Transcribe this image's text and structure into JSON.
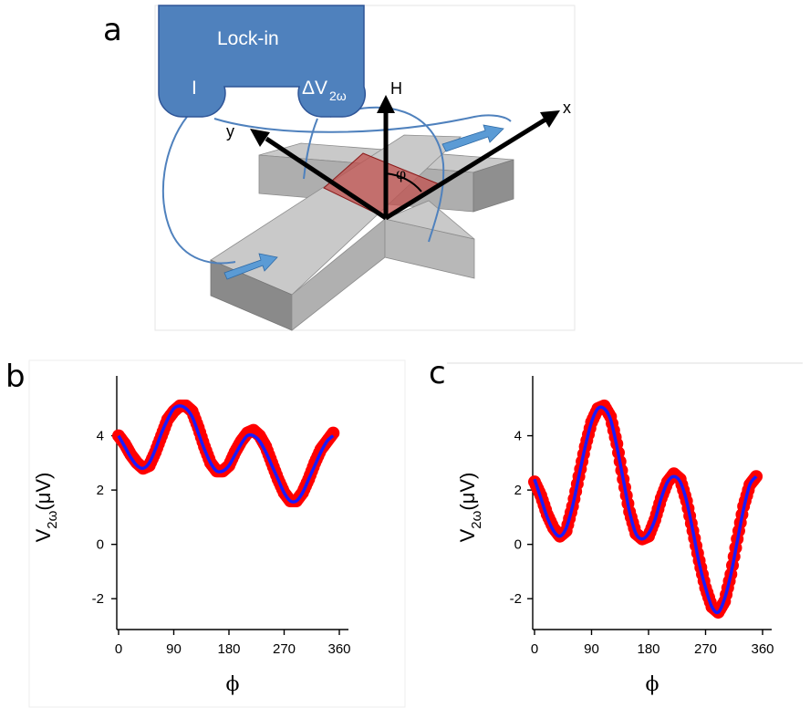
{
  "panels": {
    "a": {
      "letter": "a"
    },
    "b": {
      "letter": "b"
    },
    "c": {
      "letter": "c"
    }
  },
  "schematic": {
    "lockin_title": "Lock-in",
    "current_label": "I",
    "voltage_label": "ΔV",
    "voltage_subscript": "2ω",
    "axis_h": "H",
    "axis_x": "x",
    "axis_y": "y",
    "angle_label": "φ",
    "colors": {
      "lockin": "#4f81bd",
      "block": "#c0c0c0",
      "square": "#c0504d",
      "wire": "#4f81bd"
    }
  },
  "chart_data": [
    {
      "panel": "b",
      "type": "scatter",
      "xlabel": "ϕ",
      "ylabel_main": "V",
      "ylabel_sub": "2ω",
      "ylabel_unit": "(μV)",
      "xlim": [
        0,
        360
      ],
      "ylim": [
        -2.8,
        5.8
      ],
      "xticks": [
        0,
        90,
        180,
        270,
        360
      ],
      "yticks": [
        -2,
        0,
        2,
        4
      ],
      "x": [
        0,
        10,
        20,
        30,
        40,
        50,
        60,
        70,
        80,
        90,
        100,
        110,
        120,
        130,
        140,
        150,
        160,
        170,
        180,
        190,
        200,
        210,
        220,
        230,
        240,
        250,
        260,
        270,
        280,
        290,
        300,
        310,
        320,
        330,
        340,
        350
      ],
      "values": [
        4.0,
        3.7,
        3.3,
        3.0,
        2.8,
        2.9,
        3.4,
        4.0,
        4.6,
        4.9,
        5.1,
        5.1,
        4.9,
        4.3,
        3.6,
        3.0,
        2.7,
        2.7,
        2.9,
        3.4,
        3.8,
        4.1,
        4.2,
        4.0,
        3.6,
        3.0,
        2.4,
        1.9,
        1.6,
        1.6,
        1.9,
        2.4,
        3.0,
        3.5,
        3.8,
        4.1
      ],
      "fit": [
        4.0,
        3.6,
        3.2,
        2.9,
        2.8,
        3.0,
        3.5,
        4.1,
        4.6,
        5.0,
        5.1,
        5.0,
        4.7,
        4.1,
        3.5,
        3.0,
        2.7,
        2.7,
        2.9,
        3.3,
        3.7,
        4.0,
        4.0,
        3.8,
        3.4,
        2.9,
        2.4,
        1.9,
        1.6,
        1.6,
        1.9,
        2.4,
        2.9,
        3.4,
        3.8,
        4.0
      ],
      "marker_color": "#ff0000",
      "fit_color": "#1a1aff"
    },
    {
      "panel": "c",
      "type": "scatter",
      "xlabel": "ϕ",
      "ylabel_main": "V",
      "ylabel_sub": "2ω",
      "ylabel_unit": "(μV)",
      "xlim": [
        0,
        360
      ],
      "ylim": [
        -2.8,
        5.8
      ],
      "xticks": [
        0,
        90,
        180,
        270,
        360
      ],
      "yticks": [
        -2,
        0,
        2,
        4
      ],
      "x": [
        0,
        10,
        20,
        30,
        40,
        50,
        60,
        70,
        80,
        90,
        100,
        110,
        120,
        130,
        140,
        150,
        160,
        170,
        180,
        190,
        200,
        210,
        220,
        230,
        240,
        250,
        260,
        270,
        280,
        290,
        300,
        310,
        320,
        330,
        340,
        350
      ],
      "values": [
        2.3,
        1.8,
        1.1,
        0.6,
        0.3,
        0.5,
        1.4,
        2.5,
        3.6,
        4.5,
        5.0,
        5.1,
        4.7,
        3.7,
        2.4,
        1.2,
        0.4,
        0.2,
        0.3,
        0.9,
        1.7,
        2.3,
        2.6,
        2.4,
        1.6,
        0.5,
        -0.6,
        -1.6,
        -2.3,
        -2.5,
        -2.1,
        -1.1,
        0.2,
        1.4,
        2.2,
        2.5
      ],
      "fit": [
        2.4,
        1.7,
        1.0,
        0.5,
        0.3,
        0.6,
        1.4,
        2.5,
        3.6,
        4.5,
        5.0,
        5.0,
        4.6,
        3.6,
        2.4,
        1.2,
        0.4,
        0.2,
        0.4,
        0.9,
        1.7,
        2.3,
        2.5,
        2.3,
        1.6,
        0.5,
        -0.7,
        -1.6,
        -2.3,
        -2.5,
        -2.0,
        -1.1,
        0.1,
        1.3,
        2.2,
        2.5
      ],
      "marker_color": "#ff0000",
      "fit_color": "#1a1aff"
    }
  ]
}
